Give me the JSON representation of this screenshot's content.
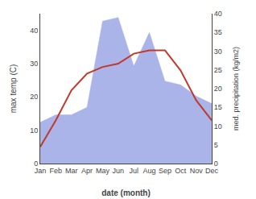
{
  "chart_data": {
    "type": "line",
    "categories": [
      "Jan",
      "Feb",
      "Mar",
      "Apr",
      "May",
      "Jun",
      "Jul",
      "Aug",
      "Sep",
      "Oct",
      "Nov",
      "Dec"
    ],
    "xlabel": "date (month)",
    "ylabel": "max temp (C)",
    "y2label": "med. precipitation (kg/m2)",
    "series": [
      {
        "type": "line",
        "color": "#c0392b",
        "values": [
          5,
          13,
          22,
          27,
          29,
          30,
          33,
          34,
          34,
          28,
          19,
          13
        ]
      },
      {
        "type": "area",
        "color": "#aab4e8",
        "axis": "y2",
        "values": [
          11,
          13,
          13,
          15,
          38,
          39,
          26,
          35,
          22,
          21,
          18,
          16
        ]
      }
    ],
    "ylim": [
      0,
      45
    ],
    "yticks": [
      0,
      10,
      20,
      30,
      40
    ],
    "y2lim": [
      0,
      40
    ],
    "y2ticks": [
      0,
      5,
      10,
      15,
      20,
      25,
      30,
      35,
      40
    ],
    "grid": false
  }
}
